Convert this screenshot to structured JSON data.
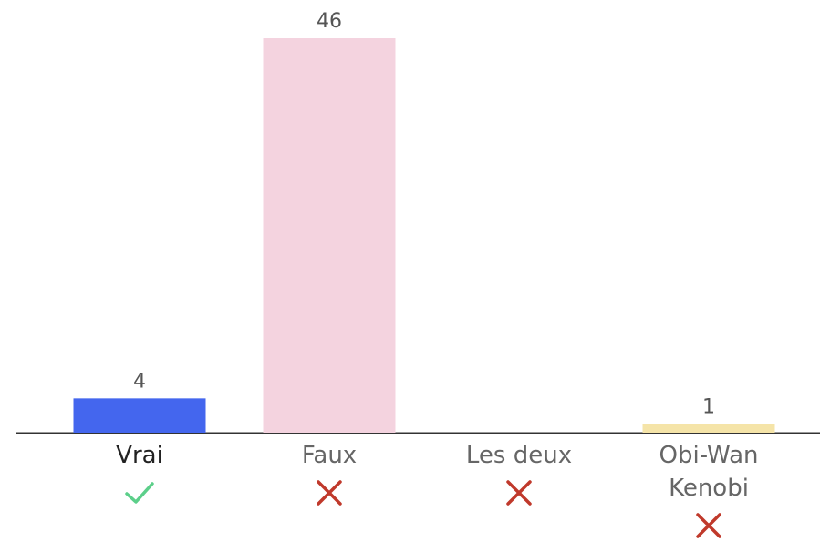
{
  "chart_data": {
    "type": "bar",
    "categories": [
      "Vrai",
      "Faux",
      "Les deux",
      "Obi-Wan Kenobi"
    ],
    "values": [
      4,
      46,
      0,
      1
    ],
    "colors": [
      "#4466ee",
      "#f4d3df",
      "#cccccc",
      "#f5e4a8"
    ],
    "correct": [
      true,
      false,
      false,
      false
    ]
  }
}
